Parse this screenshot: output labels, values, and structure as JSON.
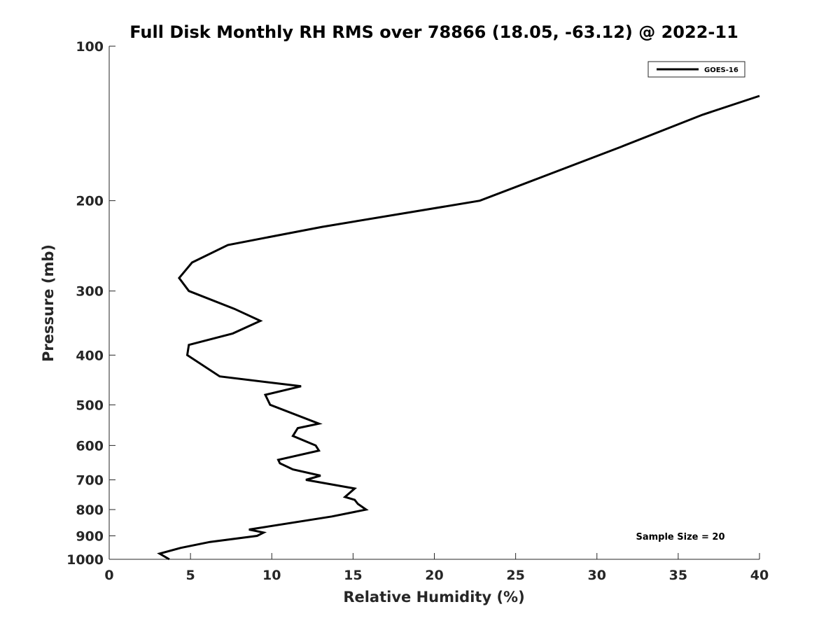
{
  "chart_data": {
    "type": "line",
    "title": "Full Disk Monthly RH RMS over 78866 (18.05, -63.12) @ 2022-11",
    "xlabel": "Relative Humidity (%)",
    "ylabel": "Pressure (mb)",
    "xlim": [
      0,
      40
    ],
    "ylim": [
      100,
      1000
    ],
    "yscale": "log",
    "y_reversed": true,
    "grid": false,
    "legend_position": "top-right",
    "x_ticks": [
      0,
      5,
      10,
      15,
      20,
      25,
      30,
      35,
      40
    ],
    "y_ticks": [
      100,
      200,
      300,
      400,
      500,
      600,
      700,
      800,
      900,
      1000
    ],
    "series": [
      {
        "name": "GOES-16",
        "color": "#000000",
        "points": [
          [
            3.7,
            1000
          ],
          [
            3.1,
            975
          ],
          [
            4.4,
            950
          ],
          [
            6.2,
            925
          ],
          [
            9.1,
            900
          ],
          [
            9.5,
            887
          ],
          [
            8.6,
            875
          ],
          [
            13.7,
            825
          ],
          [
            15.8,
            800
          ],
          [
            15.3,
            780
          ],
          [
            15.1,
            766
          ],
          [
            14.5,
            756
          ],
          [
            15.1,
            728
          ],
          [
            12.1,
            700
          ],
          [
            13.0,
            687
          ],
          [
            11.3,
            668
          ],
          [
            10.5,
            650
          ],
          [
            10.4,
            640
          ],
          [
            12.9,
            614
          ],
          [
            12.7,
            600
          ],
          [
            11.3,
            575
          ],
          [
            11.6,
            555
          ],
          [
            12.9,
            544
          ],
          [
            9.9,
            500
          ],
          [
            9.6,
            478
          ],
          [
            11.8,
            460
          ],
          [
            6.8,
            440
          ],
          [
            4.8,
            400
          ],
          [
            4.9,
            382
          ],
          [
            7.6,
            363
          ],
          [
            9.3,
            343
          ],
          [
            7.7,
            325
          ],
          [
            4.9,
            300
          ],
          [
            4.3,
            283
          ],
          [
            5.1,
            264
          ],
          [
            7.3,
            244
          ],
          [
            13.1,
            225
          ],
          [
            22.8,
            200
          ],
          [
            31.5,
            157
          ],
          [
            36.5,
            136
          ],
          [
            40.0,
            125
          ]
        ]
      }
    ],
    "annotations": [
      "Sample Size = 20"
    ]
  }
}
